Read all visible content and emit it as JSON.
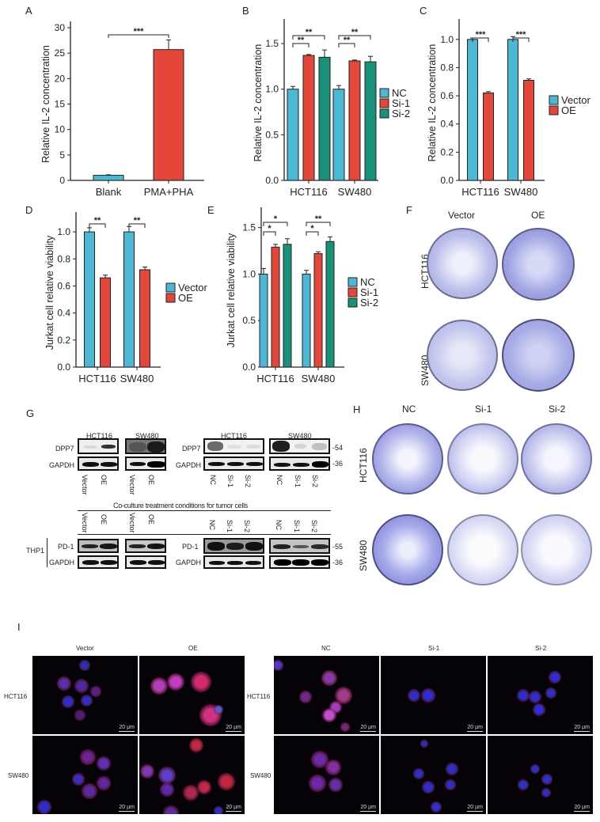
{
  "colors": {
    "cyan": "#4bb8d6",
    "red": "#e4473a",
    "teal": "#17917a",
    "axis": "#222222",
    "crystal_violet": "#7d7fd6"
  },
  "panels": {
    "A": {
      "label": "A"
    },
    "B": {
      "label": "B"
    },
    "C": {
      "label": "C"
    },
    "D": {
      "label": "D"
    },
    "E": {
      "label": "E"
    },
    "F": {
      "label": "F",
      "cols": [
        "Vector",
        "OE"
      ],
      "rows": [
        "HCT116",
        "SW480"
      ]
    },
    "G": {
      "label": "G",
      "top_left": {
        "groups": [
          "HCT116",
          "SW480"
        ],
        "rows": [
          "DPP7",
          "GAPDH"
        ],
        "lanes": [
          "Vector",
          "OE",
          "Vector",
          "OE"
        ]
      },
      "top_right": {
        "groups": [
          "HCT116",
          "SW480"
        ],
        "rows": [
          "DPP7",
          "GAPDH"
        ],
        "lanes": [
          "NC",
          "Si-1",
          "Si-2",
          "NC",
          "Si-1",
          "Si-2"
        ],
        "mw": [
          "-54",
          "-36"
        ]
      },
      "coculture_title": "Co-culture treatment conditions for tumor cells",
      "bottom_left": {
        "cell_line": "THP1",
        "rows": [
          "PD-1",
          "GAPDH"
        ],
        "lanes": [
          "Vector",
          "OE",
          "Vector",
          "OE"
        ]
      },
      "bottom_right": {
        "rows": [
          "PD-1",
          "GAPDH"
        ],
        "lanes": [
          "NC",
          "Si-1",
          "Si-2",
          "NC",
          "Si-1",
          "Si-2"
        ],
        "mw": [
          "-55",
          "-36"
        ]
      }
    },
    "H": {
      "label": "H",
      "cols": [
        "NC",
        "Si-1",
        "Si-2"
      ],
      "rows": [
        "HCT116",
        "SW480"
      ]
    },
    "I": {
      "label": "I",
      "left_cols": [
        "Vector",
        "OE"
      ],
      "right_cols": [
        "NC",
        "Si-1",
        "Si-2"
      ],
      "rows": [
        "HCT116",
        "SW480"
      ],
      "scale_bar": "20 µm"
    }
  },
  "chart_data": [
    {
      "panel": "A",
      "type": "bar",
      "title": "",
      "xlabel": "",
      "ylabel": "Relative IL-2 concentration",
      "categories": [
        "Blank",
        "PMA+PHA"
      ],
      "values": [
        1.0,
        25.7
      ],
      "errors": [
        0.1,
        1.9
      ],
      "ylim": [
        0,
        30
      ],
      "yticks": [
        0,
        5,
        10,
        15,
        20,
        25,
        30
      ],
      "colors": [
        "#4bb8d6",
        "#e4473a"
      ],
      "annotations": [
        {
          "between": [
            "Blank",
            "PMA+PHA"
          ],
          "text": "***"
        }
      ],
      "grid": false
    },
    {
      "panel": "B",
      "type": "bar",
      "ylabel": "Relative IL-2 concentration",
      "categories": [
        "HCT116",
        "SW480"
      ],
      "series": [
        {
          "name": "NC",
          "values": [
            1.0,
            1.0
          ],
          "errors": [
            0.03,
            0.04
          ]
        },
        {
          "name": "Si-1",
          "values": [
            1.37,
            1.31
          ],
          "errors": [
            0.01,
            0.01
          ]
        },
        {
          "name": "Si-2",
          "values": [
            1.35,
            1.3
          ],
          "errors": [
            0.08,
            0.06
          ]
        }
      ],
      "ylim": [
        0,
        1.7
      ],
      "yticks": [
        "0.0",
        "0.5",
        "1.0",
        "1.5"
      ],
      "legend": "right",
      "annotations": [
        {
          "group": "HCT116",
          "pair": [
            "NC",
            "Si-1"
          ],
          "text": "**"
        },
        {
          "group": "HCT116",
          "pair": [
            "NC",
            "Si-2"
          ],
          "text": "**"
        },
        {
          "group": "SW480",
          "pair": [
            "NC",
            "Si-1"
          ],
          "text": "**"
        },
        {
          "group": "SW480",
          "pair": [
            "NC",
            "Si-2"
          ],
          "text": "**"
        }
      ]
    },
    {
      "panel": "C",
      "type": "bar",
      "ylabel": "Relative IL-2 concentration",
      "categories": [
        "HCT116",
        "SW480"
      ],
      "series": [
        {
          "name": "Vector",
          "values": [
            1.0,
            1.0
          ],
          "errors": [
            0.01,
            0.02
          ]
        },
        {
          "name": "OE",
          "values": [
            0.62,
            0.71
          ],
          "errors": [
            0.01,
            0.01
          ]
        }
      ],
      "ylim": [
        0,
        1.1
      ],
      "yticks": [
        "0.0",
        "0.2",
        "0.4",
        "0.6",
        "0.8",
        "1.0"
      ],
      "legend": "right",
      "annotations": [
        {
          "group": "HCT116",
          "text": "***"
        },
        {
          "group": "SW480",
          "text": "***"
        }
      ]
    },
    {
      "panel": "D",
      "type": "bar",
      "ylabel": "Jurkat cell relative viability",
      "categories": [
        "HCT116",
        "SW480"
      ],
      "series": [
        {
          "name": "Vector",
          "values": [
            1.0,
            1.0
          ],
          "errors": [
            0.03,
            0.04
          ]
        },
        {
          "name": "OE",
          "values": [
            0.66,
            0.72
          ],
          "errors": [
            0.02,
            0.02
          ]
        }
      ],
      "ylim": [
        0,
        1.1
      ],
      "yticks": [
        "0.0",
        "0.2",
        "0.4",
        "0.6",
        "0.8",
        "1.0"
      ],
      "legend": "right",
      "annotations": [
        {
          "group": "HCT116",
          "text": "**"
        },
        {
          "group": "SW480",
          "text": "**"
        }
      ]
    },
    {
      "panel": "E",
      "type": "bar",
      "ylabel": "Jurkat cell relative viability",
      "categories": [
        "HCT116",
        "SW480"
      ],
      "series": [
        {
          "name": "NC",
          "values": [
            1.0,
            1.0
          ],
          "errors": [
            0.06,
            0.04
          ]
        },
        {
          "name": "Si-1",
          "values": [
            1.29,
            1.22
          ],
          "errors": [
            0.03,
            0.02
          ]
        },
        {
          "name": "Si-2",
          "values": [
            1.32,
            1.35
          ],
          "errors": [
            0.06,
            0.05
          ]
        }
      ],
      "ylim": [
        0,
        1.65
      ],
      "yticks": [
        "0.0",
        "0.5",
        "1.0",
        "1.5"
      ],
      "legend": "right",
      "annotations": [
        {
          "group": "HCT116",
          "pair": [
            "NC",
            "Si-1"
          ],
          "text": "*"
        },
        {
          "group": "HCT116",
          "pair": [
            "NC",
            "Si-2"
          ],
          "text": "*"
        },
        {
          "group": "SW480",
          "pair": [
            "NC",
            "Si-1"
          ],
          "text": "*"
        },
        {
          "group": "SW480",
          "pair": [
            "NC",
            "Si-2"
          ],
          "text": "**"
        }
      ]
    }
  ]
}
